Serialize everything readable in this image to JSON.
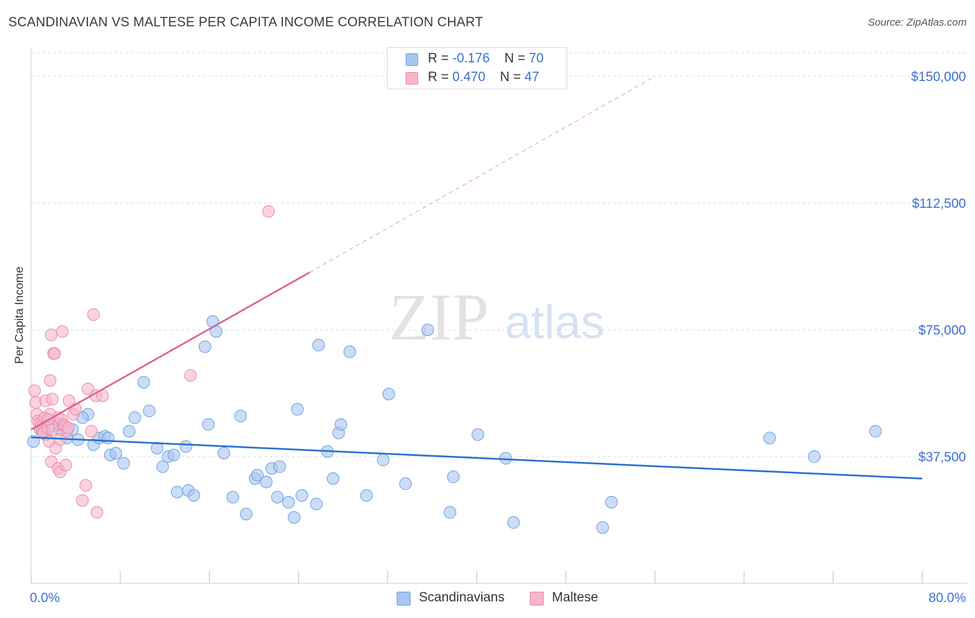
{
  "header": {
    "title": "SCANDINAVIAN VS MALTESE PER CAPITA INCOME CORRELATION CHART",
    "source": "Source: ZipAtlas.com"
  },
  "watermark": {
    "zip": "ZIP",
    "atlas": "atlas"
  },
  "stats": [
    {
      "r_label": "R = ",
      "r_value": "-0.176",
      "n_label": "N = ",
      "n_value": "70"
    },
    {
      "r_label": "R = ",
      "r_value": "0.470",
      "n_label": "N = ",
      "n_value": "47"
    }
  ],
  "legend": [
    "Scandinavians",
    "Maltese"
  ],
  "chart_data": {
    "type": "scatter",
    "title": "SCANDINAVIAN VS MALTESE PER CAPITA INCOME CORRELATION CHART",
    "xlabel": "",
    "ylabel": "Per Capita Income",
    "xlim": [
      0,
      80
    ],
    "ylim": [
      0,
      157000
    ],
    "x_unit": "%",
    "x_tick_labels": [
      "0.0%",
      "80.0%"
    ],
    "y_ticks": [
      37500,
      75000,
      112500,
      150000
    ],
    "y_tick_labels": [
      "$37,500",
      "$75,000",
      "$112,500",
      "$150,000"
    ],
    "grid": "horizontal dashed",
    "legend_position": "bottom-center",
    "colors": {
      "scandinavians_fill": "#a9c6f0",
      "scandinavians_stroke": "#6d9ee0",
      "scandinavians_line": "#2b6fd0",
      "maltese_fill": "#f7b6cb",
      "maltese_stroke": "#e98aa9",
      "maltese_line": "#e0628e",
      "tick_label": "#3b6fd0"
    },
    "series": [
      {
        "name": "Scandinavians",
        "r": -0.176,
        "n": 70,
        "trend": {
          "x": [
            0,
            80
          ],
          "y": [
            43200,
            31000
          ]
        },
        "points": [
          [
            0.2,
            42000
          ],
          [
            0.8,
            45500
          ],
          [
            1.3,
            44000
          ],
          [
            2.0,
            46500
          ],
          [
            2.6,
            45500
          ],
          [
            3.2,
            43000
          ],
          [
            3.7,
            45500
          ],
          [
            4.2,
            42500
          ],
          [
            5.1,
            50000
          ],
          [
            5.6,
            41000
          ],
          [
            6.1,
            43000
          ],
          [
            6.6,
            43500
          ],
          [
            7.1,
            38000
          ],
          [
            7.6,
            38500
          ],
          [
            8.3,
            35500
          ],
          [
            8.8,
            45000
          ],
          [
            9.3,
            49000
          ],
          [
            10.1,
            59500
          ],
          [
            10.6,
            51000
          ],
          [
            11.3,
            40000
          ],
          [
            11.8,
            34500
          ],
          [
            12.3,
            37500
          ],
          [
            12.8,
            38000
          ],
          [
            13.1,
            27000
          ],
          [
            13.9,
            40500
          ],
          [
            14.1,
            27500
          ],
          [
            14.6,
            26000
          ],
          [
            15.6,
            70000
          ],
          [
            15.9,
            47000
          ],
          [
            16.3,
            77500
          ],
          [
            16.6,
            74500
          ],
          [
            17.3,
            38500
          ],
          [
            18.1,
            25500
          ],
          [
            18.8,
            49500
          ],
          [
            19.3,
            20500
          ],
          [
            20.1,
            31000
          ],
          [
            20.3,
            32000
          ],
          [
            21.1,
            30000
          ],
          [
            21.6,
            34000
          ],
          [
            22.3,
            34500
          ],
          [
            22.1,
            25500
          ],
          [
            23.1,
            24000
          ],
          [
            23.6,
            19500
          ],
          [
            23.9,
            51500
          ],
          [
            24.3,
            26000
          ],
          [
            25.6,
            23500
          ],
          [
            25.8,
            70500
          ],
          [
            26.6,
            39000
          ],
          [
            27.1,
            31000
          ],
          [
            27.6,
            44500
          ],
          [
            27.8,
            47000
          ],
          [
            28.6,
            68500
          ],
          [
            30.1,
            26000
          ],
          [
            31.6,
            36500
          ],
          [
            32.1,
            56000
          ],
          [
            33.6,
            29500
          ],
          [
            35.6,
            75000
          ],
          [
            37.6,
            21000
          ],
          [
            37.9,
            31500
          ],
          [
            40.1,
            44000
          ],
          [
            42.6,
            37000
          ],
          [
            43.3,
            18000
          ],
          [
            51.3,
            16500
          ],
          [
            52.1,
            24000
          ],
          [
            66.3,
            43000
          ],
          [
            70.3,
            37500
          ],
          [
            75.8,
            45000
          ],
          [
            1.1,
            44500
          ],
          [
            4.6,
            49000
          ],
          [
            6.9,
            43000
          ]
        ]
      },
      {
        "name": "Maltese",
        "r": 0.47,
        "n": 47,
        "trend": {
          "x": [
            0,
            25
          ],
          "y": [
            45500,
            92000
          ]
        },
        "trend_dashed_extension": {
          "x": [
            25,
            56
          ],
          "y": [
            92000,
            150000
          ]
        },
        "points": [
          [
            0.3,
            57000
          ],
          [
            0.4,
            53500
          ],
          [
            0.5,
            50000
          ],
          [
            0.6,
            48000
          ],
          [
            0.8,
            47500
          ],
          [
            0.9,
            46500
          ],
          [
            1.0,
            45000
          ],
          [
            1.1,
            44500
          ],
          [
            1.2,
            49000
          ],
          [
            1.3,
            54000
          ],
          [
            1.5,
            46000
          ],
          [
            1.6,
            42000
          ],
          [
            1.7,
            50000
          ],
          [
            1.8,
            36000
          ],
          [
            1.9,
            54500
          ],
          [
            1.7,
            60000
          ],
          [
            1.8,
            73500
          ],
          [
            1.9,
            45500
          ],
          [
            2.0,
            68000
          ],
          [
            2.1,
            68000
          ],
          [
            2.2,
            40000
          ],
          [
            2.4,
            49000
          ],
          [
            2.5,
            47000
          ],
          [
            2.6,
            42500
          ],
          [
            2.7,
            48500
          ],
          [
            2.4,
            34000
          ],
          [
            2.6,
            33000
          ],
          [
            2.8,
            74500
          ],
          [
            2.9,
            47000
          ],
          [
            3.0,
            46500
          ],
          [
            3.1,
            35000
          ],
          [
            3.2,
            45000
          ],
          [
            3.3,
            46000
          ],
          [
            3.4,
            54000
          ],
          [
            3.8,
            50000
          ],
          [
            4.0,
            51500
          ],
          [
            4.6,
            24500
          ],
          [
            4.9,
            29000
          ],
          [
            5.1,
            57500
          ],
          [
            5.4,
            45000
          ],
          [
            5.6,
            79500
          ],
          [
            5.8,
            55500
          ],
          [
            5.9,
            21000
          ],
          [
            6.4,
            55500
          ],
          [
            14.3,
            61500
          ],
          [
            21.3,
            110000
          ],
          [
            1.5,
            48500
          ]
        ]
      }
    ]
  }
}
